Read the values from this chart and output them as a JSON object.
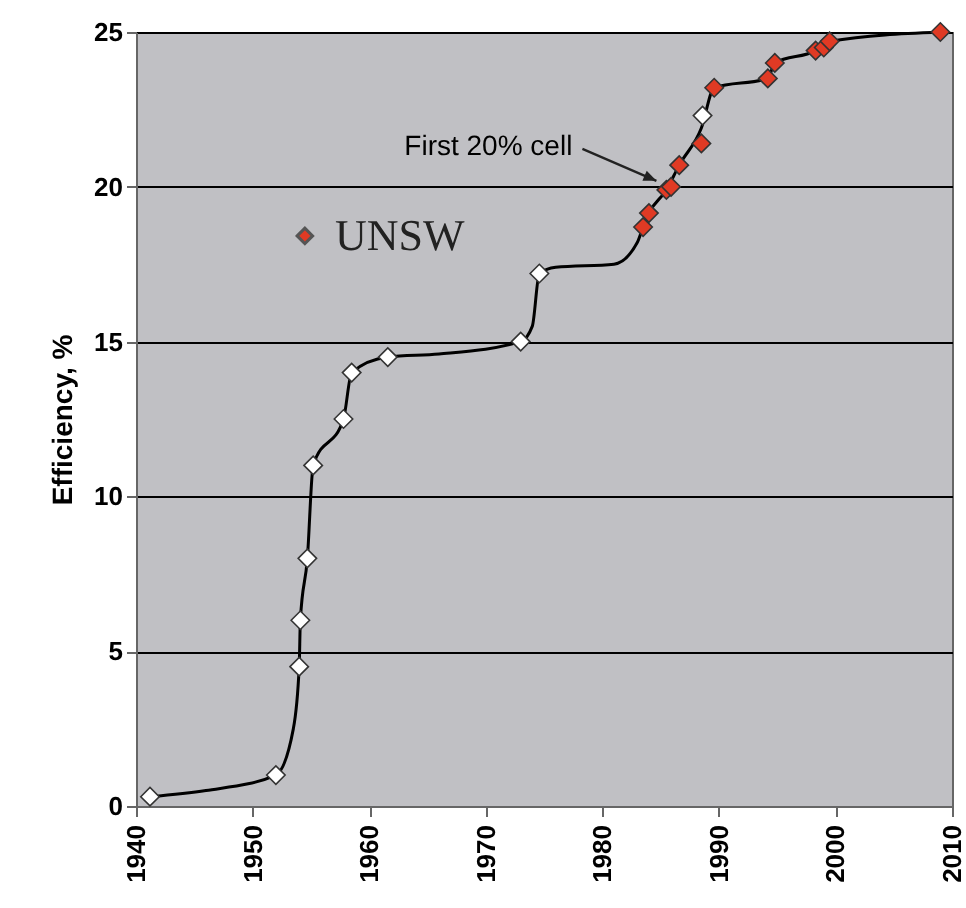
{
  "chart_data": {
    "type": "scatter",
    "ylabel": "Efficiency, %",
    "xlim": [
      1940,
      2010
    ],
    "xticks": [
      1940,
      1950,
      1960,
      1970,
      1980,
      1990,
      2000,
      2010
    ],
    "ylim": [
      0,
      25
    ],
    "yticks": [
      0,
      5,
      10,
      15,
      20,
      25
    ],
    "grid": "y",
    "legend": "top left",
    "marker": "diamond",
    "annotations": [
      {
        "text": "First 20% cell",
        "x": 1985.5,
        "y": 20
      }
    ],
    "series": [
      {
        "type": "line",
        "color": "#000000",
        "marker": "none",
        "x": [
          1941.2,
          1946,
          1952,
          1953.5,
          1954,
          1954.1,
          1954.7,
          1955.2,
          1957.8,
          1958.5,
          1961.6,
          1966,
          1973,
          1974,
          1974.6,
          1976,
          1981,
          1983,
          1983.5,
          1984,
          1985.5,
          1986.6,
          1988.5,
          1989.6,
          1994.2,
          1994.8,
          1998.3,
          1999.5,
          2009
        ],
        "values": [
          0.3,
          0.5,
          1.0,
          2.5,
          4.5,
          6,
          8,
          11,
          12.5,
          14,
          14.5,
          14.6,
          15,
          15.5,
          17.2,
          17.4,
          17.5,
          18.2,
          18.7,
          19.15,
          19.9,
          20.7,
          21.9,
          23.2,
          23.5,
          24.0,
          24.4,
          24.7,
          25.0
        ]
      },
      {
        "color": "#ffffff",
        "x": [
          1941.2,
          1952,
          1954,
          1954.1,
          1954.7,
          1955.2,
          1957.8,
          1958.5,
          1961.6,
          1973,
          1974.6,
          1988.6
        ],
        "values": [
          0.3,
          1.0,
          4.5,
          6,
          8,
          11,
          12.5,
          14,
          14.5,
          15,
          17.2,
          22.3
        ]
      },
      {
        "name": "UNSW",
        "color": "#e03a24",
        "x": [
          1983.5,
          1984,
          1985.5,
          1985.9,
          1986.6,
          1988.5,
          1989.6,
          1994.2,
          1994.8,
          1998.3,
          1999,
          1999.5,
          2009
        ],
        "values": [
          18.7,
          19.15,
          19.9,
          20.0,
          20.7,
          21.4,
          23.2,
          23.5,
          24.0,
          24.4,
          24.5,
          24.7,
          25.0
        ]
      }
    ]
  }
}
